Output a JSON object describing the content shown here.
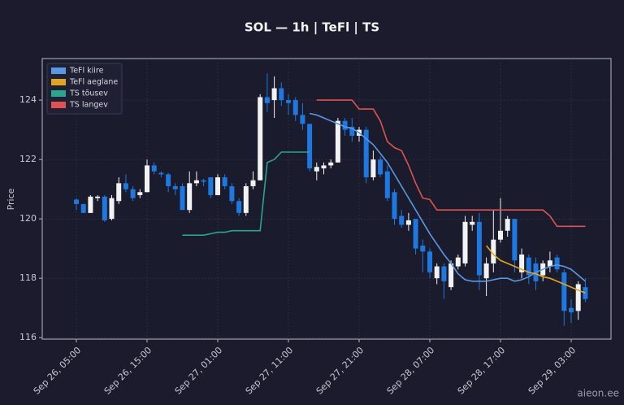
{
  "chart_data": {
    "type": "candlestick",
    "title": "SOL — 1h  |  TeFl  |  TS",
    "y_label": "Price",
    "watermark": "aieon.ee",
    "up_color": "#f2f2f2",
    "down_color": "#1f78e0",
    "grid": true,
    "legend": "upper-left",
    "x": [
      "Sep 26, 05:00",
      "Sep 26, 06:00",
      "Sep 26, 07:00",
      "Sep 26, 08:00",
      "Sep 26, 09:00",
      "Sep 26, 10:00",
      "Sep 26, 11:00",
      "Sep 26, 12:00",
      "Sep 26, 13:00",
      "Sep 26, 14:00",
      "Sep 26, 15:00",
      "Sep 26, 16:00",
      "Sep 26, 17:00",
      "Sep 26, 18:00",
      "Sep 26, 19:00",
      "Sep 26, 20:00",
      "Sep 26, 21:00",
      "Sep 26, 22:00",
      "Sep 26, 23:00",
      "Sep 27, 00:00",
      "Sep 27, 01:00",
      "Sep 27, 02:00",
      "Sep 27, 03:00",
      "Sep 27, 04:00",
      "Sep 27, 05:00",
      "Sep 27, 06:00",
      "Sep 27, 07:00",
      "Sep 27, 08:00",
      "Sep 27, 09:00",
      "Sep 27, 10:00",
      "Sep 27, 11:00",
      "Sep 27, 12:00",
      "Sep 27, 13:00",
      "Sep 27, 14:00",
      "Sep 27, 15:00",
      "Sep 27, 16:00",
      "Sep 27, 17:00",
      "Sep 27, 18:00",
      "Sep 27, 19:00",
      "Sep 27, 20:00",
      "Sep 27, 21:00",
      "Sep 27, 22:00",
      "Sep 27, 23:00",
      "Sep 28, 00:00",
      "Sep 28, 01:00",
      "Sep 28, 02:00",
      "Sep 28, 03:00",
      "Sep 28, 04:00",
      "Sep 28, 05:00",
      "Sep 28, 06:00",
      "Sep 28, 07:00",
      "Sep 28, 08:00",
      "Sep 28, 09:00",
      "Sep 28, 10:00",
      "Sep 28, 11:00",
      "Sep 28, 12:00",
      "Sep 28, 13:00",
      "Sep 28, 14:00",
      "Sep 28, 15:00",
      "Sep 28, 16:00",
      "Sep 28, 17:00",
      "Sep 28, 18:00",
      "Sep 28, 19:00",
      "Sep 28, 20:00",
      "Sep 28, 21:00",
      "Sep 28, 22:00",
      "Sep 28, 23:00",
      "Sep 29, 00:00",
      "Sep 29, 01:00",
      "Sep 29, 02:00",
      "Sep 29, 03:00",
      "Sep 29, 04:00",
      "Sep 29, 05:00"
    ],
    "open": [
      120.65,
      120.5,
      120.2,
      120.7,
      120.75,
      120,
      120.6,
      121.2,
      121,
      120.8,
      120.9,
      121.8,
      121.55,
      121.5,
      121.1,
      121.1,
      120.3,
      121.2,
      121.3,
      121.4,
      120.8,
      121.4,
      121.1,
      120.6,
      120.2,
      121.1,
      121.3,
      124.1,
      124,
      124.4,
      124,
      124,
      123.5,
      123.2,
      121.6,
      121.7,
      121.8,
      121.9,
      123.3,
      123.1,
      122.8,
      123,
      121.4,
      122,
      121.6,
      120.9,
      120.1,
      119.8,
      120,
      119.1,
      118.9,
      118,
      118.4,
      117.7,
      118.4,
      118.5,
      119.8,
      119.9,
      118,
      118.5,
      119.3,
      119.6,
      120,
      118.2,
      118.7,
      118.5,
      118.1,
      118.4,
      118.7,
      118.2,
      117,
      116.9,
      117.7
    ],
    "high": [
      120.7,
      120.5,
      120.8,
      120.8,
      120.8,
      120.8,
      121.4,
      121.5,
      121.1,
      121,
      122,
      121.9,
      121.6,
      121.55,
      121.2,
      121.2,
      121.6,
      121.6,
      121.35,
      121.4,
      121.5,
      121.5,
      121.2,
      120.7,
      121.2,
      121.6,
      124.2,
      124.9,
      124.8,
      124.6,
      124.2,
      124.1,
      123.9,
      123.2,
      121.9,
      121.9,
      122,
      123.4,
      123.4,
      123.4,
      123.1,
      123.1,
      122.3,
      122.1,
      121.8,
      121,
      120.3,
      120.2,
      120,
      119.3,
      119,
      118.5,
      118.5,
      118.6,
      118.8,
      120.1,
      120.1,
      120.2,
      118.7,
      120.3,
      120.7,
      120.1,
      120,
      119,
      118.8,
      118.7,
      118.6,
      118.9,
      118.8,
      118.3,
      117.3,
      117.9,
      118
    ],
    "low": [
      120.3,
      120.2,
      120.2,
      120.6,
      119.9,
      119.95,
      120.5,
      120.9,
      120.6,
      120.7,
      120.9,
      121.5,
      121.4,
      120.9,
      120.8,
      120.3,
      120.2,
      121.1,
      121.1,
      120.7,
      120.8,
      121,
      120.5,
      120.1,
      120.1,
      121,
      121.3,
      123.6,
      123.4,
      123.8,
      123.5,
      123.3,
      123,
      121.6,
      121.3,
      121.5,
      121.7,
      121.9,
      122.8,
      122.6,
      122.6,
      121.2,
      121.3,
      121.4,
      120.6,
      119.8,
      119.7,
      119.6,
      118.8,
      118.2,
      118,
      117.8,
      117.3,
      117.6,
      118.3,
      118.4,
      119.6,
      117.6,
      117.4,
      118.2,
      119.2,
      119.4,
      118.2,
      118,
      117.8,
      117.6,
      117.9,
      118.2,
      118.2,
      116.4,
      116.5,
      116.6,
      117.2
    ],
    "close": [
      120.5,
      120.2,
      120.75,
      120.75,
      119.95,
      120.7,
      121.2,
      121,
      120.7,
      120.9,
      121.8,
      121.6,
      121.5,
      121.1,
      121,
      120.3,
      121.2,
      121.3,
      121.25,
      120.8,
      121.4,
      121.1,
      120.6,
      120.2,
      121.1,
      121.3,
      124.1,
      123.9,
      124.4,
      124,
      123.9,
      123.5,
      123.2,
      121.7,
      121.75,
      121.8,
      121.9,
      123.3,
      123,
      122.8,
      123,
      121.4,
      122,
      121.5,
      120.7,
      120,
      119.8,
      119.95,
      119,
      118.9,
      118.2,
      118.4,
      117.9,
      118.5,
      118.7,
      119.9,
      119.9,
      118.1,
      118.5,
      119.3,
      119.6,
      120,
      118.6,
      118.8,
      118.1,
      117.9,
      118.5,
      118.6,
      118.3,
      116.9,
      116.85,
      117.8,
      117.3
    ],
    "series": [
      {
        "name": "TeFl kiire",
        "color": "#5a98e6",
        "values": [
          null,
          null,
          null,
          null,
          null,
          null,
          null,
          null,
          null,
          null,
          null,
          null,
          null,
          null,
          null,
          null,
          null,
          null,
          null,
          null,
          null,
          null,
          null,
          null,
          null,
          null,
          null,
          null,
          null,
          null,
          null,
          null,
          null,
          123.55,
          123.5,
          123.4,
          123.3,
          123.2,
          123.1,
          123.05,
          122.9,
          122.7,
          122.5,
          122.2,
          121.9,
          121.5,
          121.1,
          120.7,
          120.3,
          119.9,
          119.5,
          119.15,
          118.8,
          118.5,
          118.15,
          117.95,
          117.9,
          117.9,
          117.9,
          117.95,
          118,
          118,
          117.9,
          117.95,
          118.05,
          118.2,
          118.3,
          118.4,
          118.45,
          118.4,
          118.3,
          118.1,
          117.9
        ]
      },
      {
        "name": "TeFl aeglane",
        "color": "#e3a41e",
        "values": [
          null,
          null,
          null,
          null,
          null,
          null,
          null,
          null,
          null,
          null,
          null,
          null,
          null,
          null,
          null,
          null,
          null,
          null,
          null,
          null,
          null,
          null,
          null,
          null,
          null,
          null,
          null,
          null,
          null,
          null,
          null,
          null,
          null,
          null,
          null,
          null,
          null,
          null,
          null,
          null,
          null,
          null,
          null,
          null,
          null,
          null,
          null,
          null,
          null,
          null,
          null,
          null,
          null,
          null,
          null,
          null,
          null,
          null,
          119.1,
          118.8,
          118.6,
          118.5,
          118.4,
          118.3,
          118.2,
          118.15,
          118.05,
          118,
          117.9,
          117.8,
          117.7,
          117.6,
          117.5
        ]
      },
      {
        "name": "TS tõusev",
        "color": "#2aa58e",
        "values": [
          null,
          null,
          null,
          null,
          null,
          null,
          null,
          null,
          null,
          null,
          null,
          null,
          null,
          null,
          null,
          119.45,
          119.45,
          119.45,
          119.45,
          119.5,
          119.55,
          119.55,
          119.6,
          119.6,
          119.6,
          119.6,
          119.6,
          121.9,
          122,
          122.25,
          122.25,
          122.25,
          122.25,
          122.25,
          null,
          null,
          null,
          null,
          null,
          null,
          null,
          null,
          null,
          null,
          null,
          null,
          null,
          null,
          null,
          null,
          null,
          null,
          null,
          null,
          null,
          null,
          null,
          null,
          null,
          null,
          null,
          null,
          null,
          null,
          null,
          null,
          null,
          null,
          null,
          null,
          null,
          null,
          null
        ]
      },
      {
        "name": "TS langev",
        "color": "#e05252",
        "values": [
          null,
          null,
          null,
          null,
          null,
          null,
          null,
          null,
          null,
          null,
          null,
          null,
          null,
          null,
          null,
          null,
          null,
          null,
          null,
          null,
          null,
          null,
          null,
          null,
          null,
          null,
          null,
          null,
          null,
          null,
          null,
          null,
          null,
          null,
          124,
          124,
          124,
          124,
          124,
          124,
          123.7,
          123.7,
          123.7,
          123.3,
          122.6,
          122.4,
          122.3,
          121.8,
          121.2,
          120.7,
          120.65,
          120.3,
          120.3,
          120.3,
          120.3,
          120.3,
          120.3,
          120.3,
          120.3,
          120.3,
          120.3,
          120.3,
          120.3,
          120.3,
          120.3,
          120.3,
          120.3,
          120.1,
          119.75,
          119.75,
          119.75,
          119.75,
          119.75
        ]
      }
    ],
    "ylim": [
      115.95,
      125.4
    ],
    "yticks": [
      116,
      118,
      120,
      122,
      124
    ],
    "xticks": [
      "Sep 26, 05:00",
      "Sep 26, 15:00",
      "Sep 27, 01:00",
      "Sep 27, 11:00",
      "Sep 27, 21:00",
      "Sep 28, 07:00",
      "Sep 28, 17:00",
      "Sep 29, 03:00"
    ]
  }
}
